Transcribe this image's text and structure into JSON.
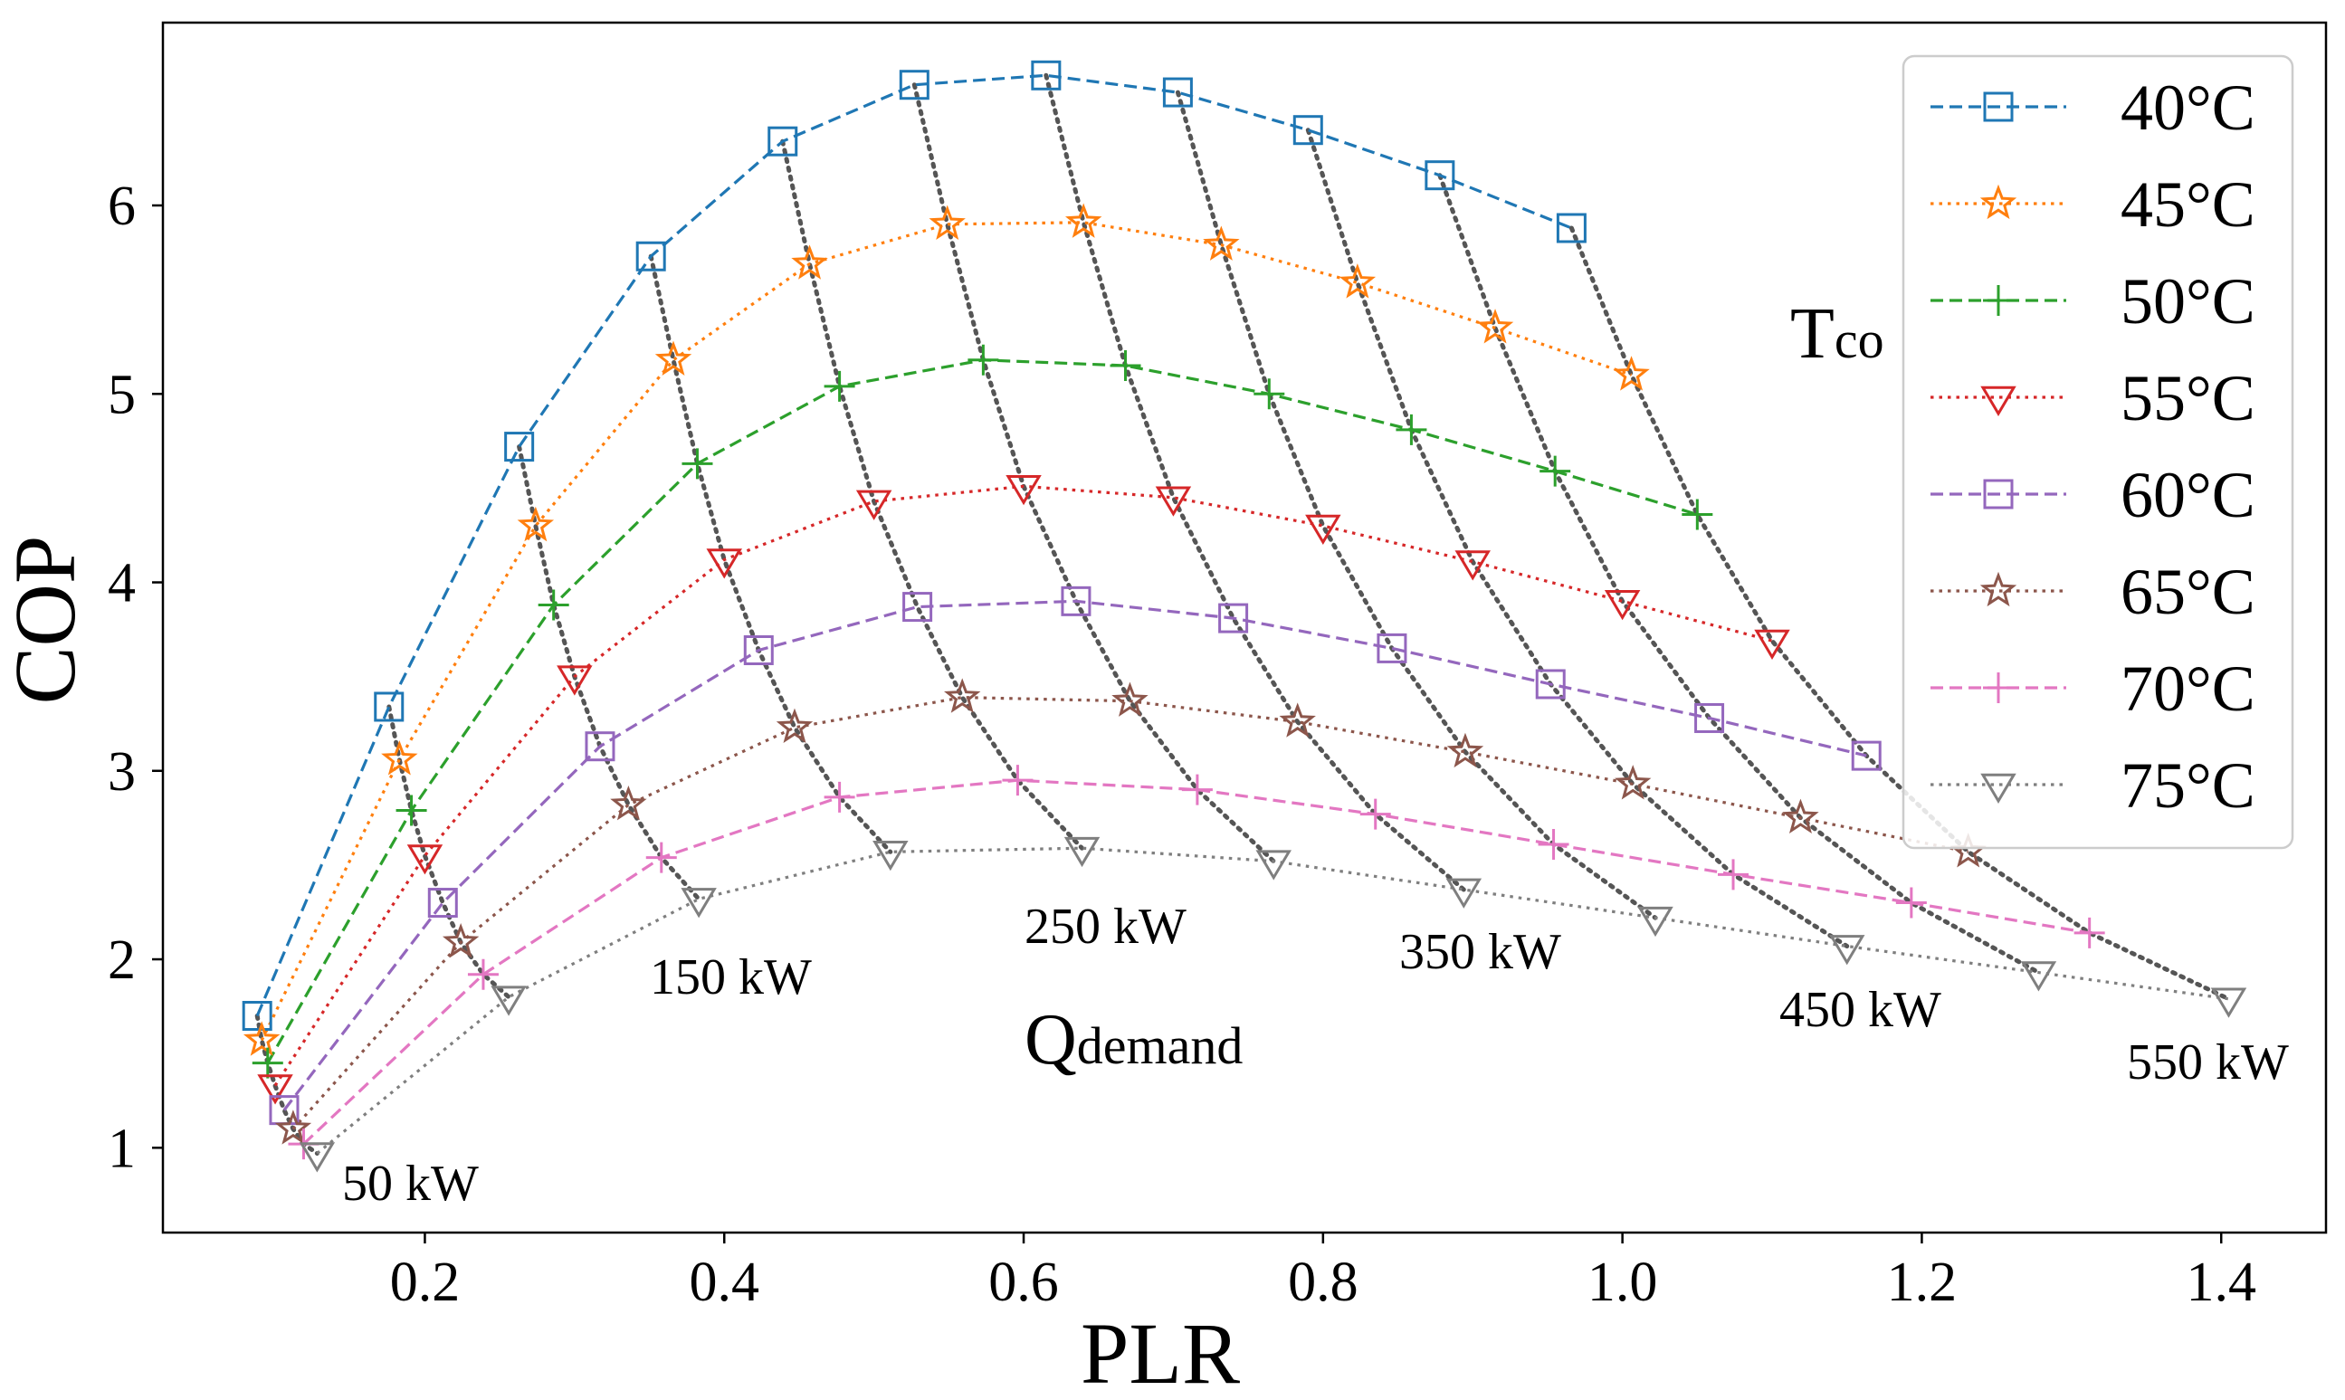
{
  "chart_data": {
    "type": "line",
    "xlabel": "PLR",
    "ylabel": "COP",
    "xlim": [
      0.025,
      1.47
    ],
    "ylim": [
      0.55,
      6.97
    ],
    "xticks": [
      0.2,
      0.4,
      0.6,
      0.8,
      1.0,
      1.2,
      1.4
    ],
    "xtick_labels": [
      "0.2",
      "0.4",
      "0.6",
      "0.8",
      "1.0",
      "1.2",
      "1.4"
    ],
    "yticks": [
      1,
      2,
      3,
      4,
      5,
      6
    ],
    "ytick_labels": [
      "1",
      "2",
      "3",
      "4",
      "5",
      "6"
    ],
    "grid": false,
    "legend_position": "top-right",
    "legend_title": "Tco",
    "series": [
      {
        "name": "40°C",
        "color": "#1f77b4",
        "dash": "dashed",
        "marker": "square",
        "x": [
          0.088,
          0.176,
          0.263,
          0.351,
          0.439,
          0.527,
          0.615,
          0.703,
          0.79,
          0.878,
          0.966
        ],
        "y": [
          1.7,
          3.34,
          4.72,
          5.73,
          6.34,
          6.64,
          6.69,
          6.6,
          6.4,
          6.16,
          5.88
        ]
      },
      {
        "name": "45°C",
        "color": "#ff7f0e",
        "dash": "dotted",
        "marker": "star",
        "x": [
          0.091,
          0.183,
          0.274,
          0.366,
          0.457,
          0.549,
          0.64,
          0.732,
          0.823,
          0.915,
          1.006
        ],
        "y": [
          1.57,
          3.06,
          4.3,
          5.18,
          5.69,
          5.9,
          5.91,
          5.79,
          5.59,
          5.35,
          5.1
        ]
      },
      {
        "name": "50°C",
        "color": "#2ca02c",
        "dash": "dashed",
        "marker": "plus",
        "x": [
          0.095,
          0.191,
          0.286,
          0.382,
          0.477,
          0.573,
          0.668,
          0.764,
          0.859,
          0.955,
          1.05
        ],
        "y": [
          1.45,
          2.79,
          3.88,
          4.63,
          5.04,
          5.18,
          5.15,
          5.0,
          4.81,
          4.59,
          4.36
        ]
      },
      {
        "name": "55°C",
        "color": "#d62728",
        "dash": "dotted",
        "marker": "tri-down",
        "x": [
          0.1,
          0.2,
          0.3,
          0.4,
          0.5,
          0.6,
          0.7,
          0.8,
          0.9,
          1.0,
          1.1
        ],
        "y": [
          1.33,
          2.55,
          3.5,
          4.12,
          4.43,
          4.51,
          4.45,
          4.3,
          4.11,
          3.9,
          3.69
        ]
      },
      {
        "name": "60°C",
        "color": "#9467bd",
        "dash": "dashed",
        "marker": "square",
        "x": [
          0.106,
          0.212,
          0.317,
          0.423,
          0.529,
          0.635,
          0.74,
          0.846,
          0.952,
          1.058,
          1.163
        ],
        "y": [
          1.2,
          2.3,
          3.13,
          3.64,
          3.87,
          3.9,
          3.81,
          3.65,
          3.46,
          3.28,
          3.08
        ]
      },
      {
        "name": "65°C",
        "color": "#8c564b",
        "dash": "dotted",
        "marker": "star",
        "x": [
          0.112,
          0.224,
          0.336,
          0.447,
          0.559,
          0.671,
          0.783,
          0.895,
          1.007,
          1.119,
          1.231
        ],
        "y": [
          1.1,
          2.09,
          2.82,
          3.23,
          3.39,
          3.37,
          3.26,
          3.1,
          2.93,
          2.75,
          2.57
        ]
      },
      {
        "name": "70°C",
        "color": "#e377c2",
        "dash": "dashed",
        "marker": "plus",
        "x": [
          0.119,
          0.239,
          0.358,
          0.477,
          0.596,
          0.716,
          0.835,
          0.954,
          1.074,
          1.193,
          1.312
        ],
        "y": [
          1.02,
          1.92,
          2.54,
          2.86,
          2.95,
          2.9,
          2.77,
          2.61,
          2.45,
          2.3,
          2.14
        ]
      },
      {
        "name": "75°C",
        "color": "#7f7f7f",
        "dash": "dotted",
        "marker": "tri-down",
        "x": [
          0.128,
          0.256,
          0.383,
          0.511,
          0.639,
          0.767,
          0.894,
          1.022,
          1.15,
          1.278,
          1.405
        ],
        "y": [
          0.97,
          1.8,
          2.32,
          2.57,
          2.59,
          2.52,
          2.37,
          2.22,
          2.07,
          1.93,
          1.79
        ]
      }
    ],
    "demand_annotations": [
      {
        "text": "50 kW"
      },
      {
        "text": "150 kW"
      },
      {
        "text": "250 kW"
      },
      {
        "text": "350 kW"
      },
      {
        "text": "450 kW"
      },
      {
        "text": "550 kW"
      }
    ],
    "annotation_qdemand": {
      "main": "Q",
      "sub": "demand"
    },
    "annotation_tco": {
      "main": "T",
      "sub": "co"
    }
  }
}
